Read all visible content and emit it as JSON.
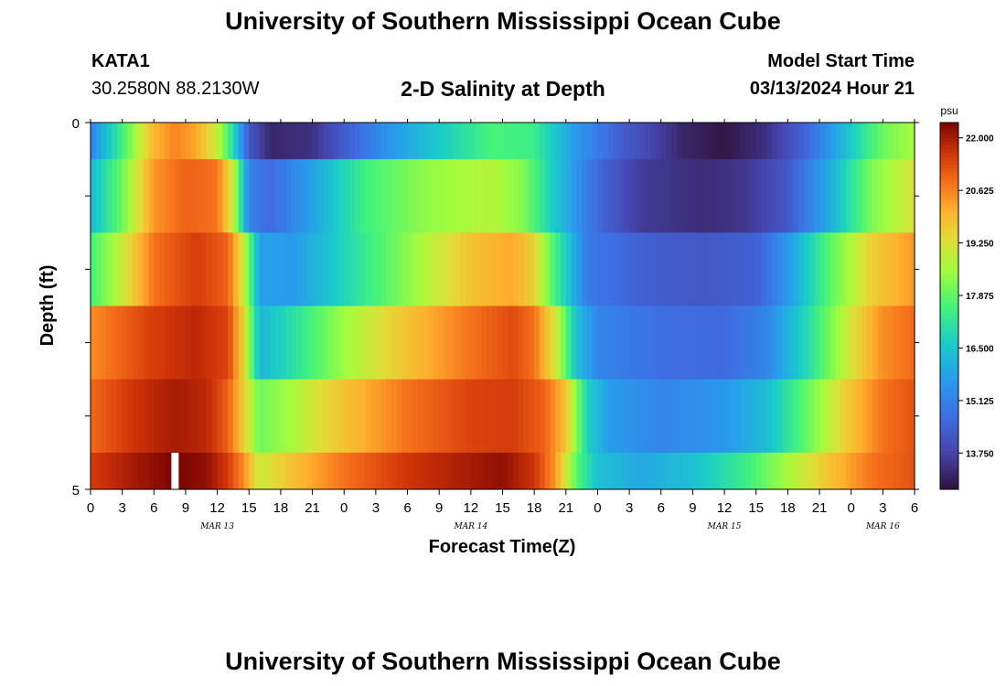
{
  "header": {
    "title": "University of Southern Mississippi Ocean Cube",
    "station_id": "KATA1",
    "coords": "30.2580N  88.2130W",
    "chart_title": "2-D Salinity at Depth",
    "model_label": "Model Start Time",
    "model_time": "03/13/2024 Hour 21"
  },
  "footer": {
    "title": "University of Southern Mississippi Ocean Cube"
  },
  "chart_data": {
    "type": "heatmap",
    "title": "2-D Salinity at Depth",
    "xlabel": "Forecast Time(Z)",
    "ylabel": "Depth (ft)",
    "x_hours_range": [
      0,
      78
    ],
    "y_range": [
      0,
      5
    ],
    "y_tick_labels": [
      "0",
      "5"
    ],
    "x_tick_labels": [
      "0",
      "3",
      "6",
      "9",
      "12",
      "15",
      "18",
      "21",
      "0",
      "3",
      "6",
      "9",
      "12",
      "15",
      "18",
      "21",
      "0",
      "3",
      "6",
      "9",
      "12",
      "15",
      "18",
      "21",
      "0",
      "3",
      "6"
    ],
    "day_labels": [
      {
        "label": "MAR 13",
        "hour": 12
      },
      {
        "label": "MAR 14",
        "hour": 36
      },
      {
        "label": "MAR 15",
        "hour": 60
      },
      {
        "label": "MAR 16",
        "hour": 75
      }
    ],
    "current_time_hour": 8,
    "colorbar": {
      "unit": "psu",
      "min": 12.8,
      "max": 22.4,
      "tick_labels": [
        "22.000",
        "20.625",
        "19.250",
        "17.875",
        "16.500",
        "15.125",
        "13.750"
      ],
      "tick_values": [
        22.0,
        20.625,
        19.25,
        17.875,
        16.5,
        15.125,
        13.75
      ]
    },
    "layers": [
      {
        "depth_range": [
          0,
          0.5
        ],
        "keys": [
          [
            0,
            15.2
          ],
          [
            3,
            17.5
          ],
          [
            6,
            20.0
          ],
          [
            8,
            20.6
          ],
          [
            10,
            20.2
          ],
          [
            12,
            19.0
          ],
          [
            13.5,
            17.0
          ],
          [
            15,
            14.2
          ],
          [
            17,
            13.2
          ],
          [
            21,
            13.4
          ],
          [
            24,
            14.3
          ],
          [
            28,
            15.5
          ],
          [
            33,
            16.6
          ],
          [
            38,
            17.6
          ],
          [
            42,
            17.4
          ],
          [
            46,
            15.6
          ],
          [
            50,
            14.4
          ],
          [
            56,
            13.2
          ],
          [
            60,
            12.9
          ],
          [
            64,
            13.4
          ],
          [
            68,
            14.6
          ],
          [
            72,
            16.6
          ],
          [
            75,
            18.0
          ],
          [
            78,
            18.6
          ]
        ]
      },
      {
        "depth_range": [
          0.5,
          1.5
        ],
        "keys": [
          [
            0,
            16.2
          ],
          [
            3,
            18.0
          ],
          [
            6,
            20.4
          ],
          [
            9,
            21.0
          ],
          [
            12,
            20.8
          ],
          [
            13.5,
            19.0
          ],
          [
            15,
            15.2
          ],
          [
            17,
            14.6
          ],
          [
            21,
            15.8
          ],
          [
            26,
            17.5
          ],
          [
            32,
            18.4
          ],
          [
            38,
            18.8
          ],
          [
            41,
            18.2
          ],
          [
            44,
            16.5
          ],
          [
            48,
            14.6
          ],
          [
            52,
            13.6
          ],
          [
            58,
            13.3
          ],
          [
            62,
            13.5
          ],
          [
            66,
            14.2
          ],
          [
            70,
            16.0
          ],
          [
            74,
            18.2
          ],
          [
            78,
            19.2
          ]
        ]
      },
      {
        "depth_range": [
          1.5,
          2.5
        ],
        "keys": [
          [
            0,
            17.5
          ],
          [
            3,
            19.0
          ],
          [
            6,
            20.8
          ],
          [
            10,
            21.5
          ],
          [
            13,
            21.0
          ],
          [
            14.5,
            19.0
          ],
          [
            16,
            15.8
          ],
          [
            19,
            15.6
          ],
          [
            24,
            16.8
          ],
          [
            30,
            18.3
          ],
          [
            36,
            19.8
          ],
          [
            40,
            20.2
          ],
          [
            42,
            19.5
          ],
          [
            44,
            17.5
          ],
          [
            47,
            15.0
          ],
          [
            52,
            14.4
          ],
          [
            58,
            14.2
          ],
          [
            63,
            14.4
          ],
          [
            66,
            15.6
          ],
          [
            70,
            17.8
          ],
          [
            74,
            19.6
          ],
          [
            78,
            20.4
          ]
        ]
      },
      {
        "depth_range": [
          2.5,
          3.5
        ],
        "keys": [
          [
            0,
            20.5
          ],
          [
            3,
            21.0
          ],
          [
            6,
            21.5
          ],
          [
            10,
            21.8
          ],
          [
            13,
            21.4
          ],
          [
            14.5,
            19.5
          ],
          [
            16,
            16.2
          ],
          [
            19,
            17.0
          ],
          [
            24,
            18.5
          ],
          [
            30,
            19.8
          ],
          [
            36,
            20.8
          ],
          [
            40,
            21.3
          ],
          [
            42,
            20.8
          ],
          [
            44,
            19.2
          ],
          [
            46,
            16.4
          ],
          [
            48,
            15.2
          ],
          [
            54,
            14.7
          ],
          [
            60,
            14.6
          ],
          [
            64,
            15.2
          ],
          [
            68,
            17.0
          ],
          [
            72,
            19.2
          ],
          [
            75,
            20.5
          ],
          [
            78,
            20.9
          ]
        ]
      },
      {
        "depth_range": [
          3.5,
          4.5
        ],
        "keys": [
          [
            0,
            20.9
          ],
          [
            4,
            21.6
          ],
          [
            8,
            22.0
          ],
          [
            11,
            21.8
          ],
          [
            13,
            21.0
          ],
          [
            14.5,
            19.6
          ],
          [
            16,
            18.0
          ],
          [
            19,
            18.6
          ],
          [
            24,
            19.8
          ],
          [
            30,
            20.8
          ],
          [
            36,
            21.4
          ],
          [
            40,
            21.5
          ],
          [
            43,
            21.0
          ],
          [
            45,
            19.8
          ],
          [
            47,
            16.8
          ],
          [
            49,
            15.7
          ],
          [
            54,
            15.2
          ],
          [
            60,
            15.6
          ],
          [
            64,
            16.3
          ],
          [
            68,
            18.0
          ],
          [
            72,
            19.8
          ],
          [
            75,
            20.8
          ],
          [
            78,
            21.2
          ]
        ]
      },
      {
        "depth_range": [
          4.5,
          5.0
        ],
        "keys": [
          [
            0,
            21.5
          ],
          [
            4,
            22.0
          ],
          [
            8,
            22.4
          ],
          [
            11,
            22.2
          ],
          [
            13,
            21.5
          ],
          [
            14.5,
            20.5
          ],
          [
            16,
            19.0
          ],
          [
            19,
            19.8
          ],
          [
            24,
            20.8
          ],
          [
            30,
            21.6
          ],
          [
            36,
            22.0
          ],
          [
            39,
            22.2
          ],
          [
            42,
            21.6
          ],
          [
            44,
            20.4
          ],
          [
            46,
            17.8
          ],
          [
            48,
            16.4
          ],
          [
            52,
            15.9
          ],
          [
            57,
            16.4
          ],
          [
            62,
            17.4
          ],
          [
            66,
            18.6
          ],
          [
            70,
            19.8
          ],
          [
            74,
            20.8
          ],
          [
            78,
            21.2
          ]
        ]
      }
    ]
  }
}
